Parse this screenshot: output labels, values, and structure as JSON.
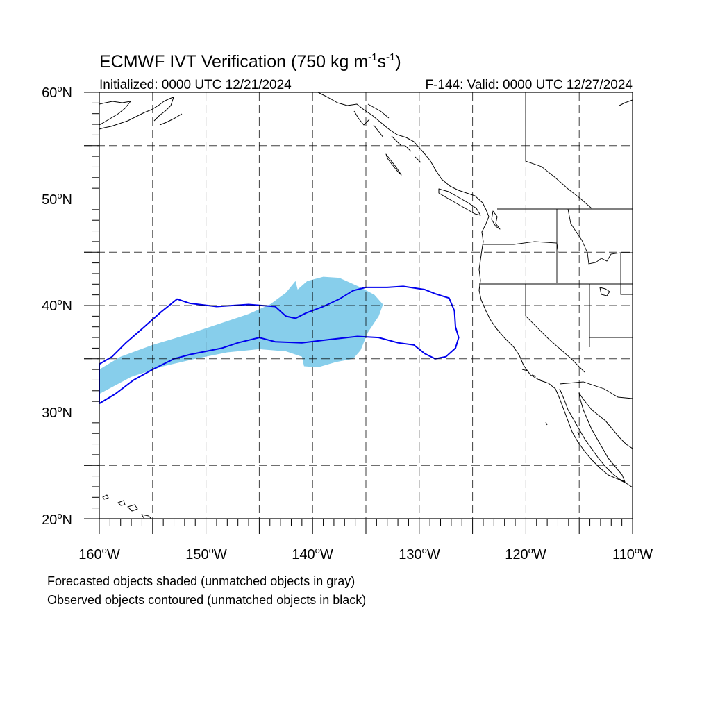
{
  "title": {
    "main": "ECMWF IVT Verification (750 kg m",
    "exp1": "-1",
    "unit_s": "s",
    "exp2": "-1",
    "close": ")"
  },
  "subtitle": {
    "left": "Initialized: 0000 UTC 12/21/2024",
    "right": "F-144: Valid: 0000 UTC 12/27/2024"
  },
  "map": {
    "lon_range": [
      -160,
      -110
    ],
    "lat_range": [
      20,
      60
    ],
    "grid_lon_step": 5,
    "grid_lat_step": 5,
    "gridlines": "dashed",
    "lat_labels": [
      {
        "lat": 60,
        "label": "60",
        "deg": "o",
        "hem": "N"
      },
      {
        "lat": 50,
        "label": "50",
        "deg": "o",
        "hem": "N"
      },
      {
        "lat": 40,
        "label": "40",
        "deg": "o",
        "hem": "N"
      },
      {
        "lat": 30,
        "label": "30",
        "deg": "o",
        "hem": "N"
      },
      {
        "lat": 20,
        "label": "20",
        "deg": "o",
        "hem": "N"
      }
    ],
    "lon_labels": [
      {
        "lon": -160,
        "label": "160",
        "deg": "o",
        "hem": "W"
      },
      {
        "lon": -150,
        "label": "150",
        "deg": "o",
        "hem": "W"
      },
      {
        "lon": -140,
        "label": "140",
        "deg": "o",
        "hem": "W"
      },
      {
        "lon": -130,
        "label": "130",
        "deg": "o",
        "hem": "W"
      },
      {
        "lon": -120,
        "label": "120",
        "deg": "o",
        "hem": "W"
      },
      {
        "lon": -110,
        "label": "110",
        "deg": "o",
        "hem": "W"
      }
    ],
    "forecast_object": {
      "style": "shaded",
      "color": "#87ceeb",
      "polygon": [
        [
          -160,
          34
        ],
        [
          -158,
          35.2
        ],
        [
          -155,
          36.3
        ],
        [
          -152,
          37.2
        ],
        [
          -149,
          38.2
        ],
        [
          -146,
          39.2
        ],
        [
          -144,
          40.1
        ],
        [
          -142.5,
          41.2
        ],
        [
          -141.6,
          42.3
        ],
        [
          -141.4,
          41.5
        ],
        [
          -140.5,
          42.3
        ],
        [
          -139,
          42.7
        ],
        [
          -137.5,
          42.6
        ],
        [
          -135.5,
          41.7
        ],
        [
          -134.2,
          41
        ],
        [
          -133.4,
          40.1
        ],
        [
          -133.8,
          39
        ],
        [
          -134.8,
          37.5
        ],
        [
          -135.5,
          35.8
        ],
        [
          -136.2,
          35
        ],
        [
          -137.8,
          34.7
        ],
        [
          -139.5,
          34.2
        ],
        [
          -140.8,
          34.3
        ],
        [
          -141,
          35.2
        ],
        [
          -142.5,
          35.7
        ],
        [
          -145,
          35.9
        ],
        [
          -148,
          35.6
        ],
        [
          -151,
          35
        ],
        [
          -154,
          34.3
        ],
        [
          -157,
          33.3
        ],
        [
          -160,
          31.7
        ]
      ]
    },
    "observed_object": {
      "style": "contoured",
      "color": "#0000ee",
      "polygon": [
        [
          -160,
          34.5
        ],
        [
          -158.8,
          35.2
        ],
        [
          -157.5,
          36.5
        ],
        [
          -156,
          37.8
        ],
        [
          -154.2,
          39.4
        ],
        [
          -152.7,
          40.6
        ],
        [
          -151.5,
          40.2
        ],
        [
          -149,
          39.9
        ],
        [
          -146,
          40.1
        ],
        [
          -143.5,
          39.9
        ],
        [
          -142.5,
          39
        ],
        [
          -141.6,
          38.8
        ],
        [
          -140.6,
          39.3
        ],
        [
          -139,
          39.9
        ],
        [
          -137.5,
          40.6
        ],
        [
          -136.2,
          41.4
        ],
        [
          -135,
          41.7
        ],
        [
          -133,
          41.7
        ],
        [
          -131.5,
          41.8
        ],
        [
          -129.5,
          41.5
        ],
        [
          -128.5,
          41.1
        ],
        [
          -127.2,
          40.7
        ],
        [
          -126.7,
          39.5
        ],
        [
          -126.6,
          38
        ],
        [
          -126.3,
          37
        ],
        [
          -126.6,
          36
        ],
        [
          -127.5,
          35.2
        ],
        [
          -128.5,
          35
        ],
        [
          -129.5,
          35.5
        ],
        [
          -130.5,
          36.3
        ],
        [
          -132,
          36.5
        ],
        [
          -133.8,
          37
        ],
        [
          -135.8,
          37.1
        ],
        [
          -138.5,
          36.8
        ],
        [
          -141,
          36.5
        ],
        [
          -143.5,
          36.6
        ],
        [
          -145,
          37
        ],
        [
          -147,
          36.5
        ],
        [
          -148.5,
          36
        ],
        [
          -150,
          35.7
        ],
        [
          -151.5,
          35.4
        ],
        [
          -153,
          35
        ],
        [
          -155,
          34
        ],
        [
          -156.8,
          33
        ],
        [
          -158.5,
          31.7
        ],
        [
          -160,
          30.8
        ]
      ]
    }
  },
  "notes": {
    "forecast": "Forecasted objects shaded (unmatched objects in gray)",
    "observed": "Observed objects contoured (unmatched objects in black)"
  }
}
